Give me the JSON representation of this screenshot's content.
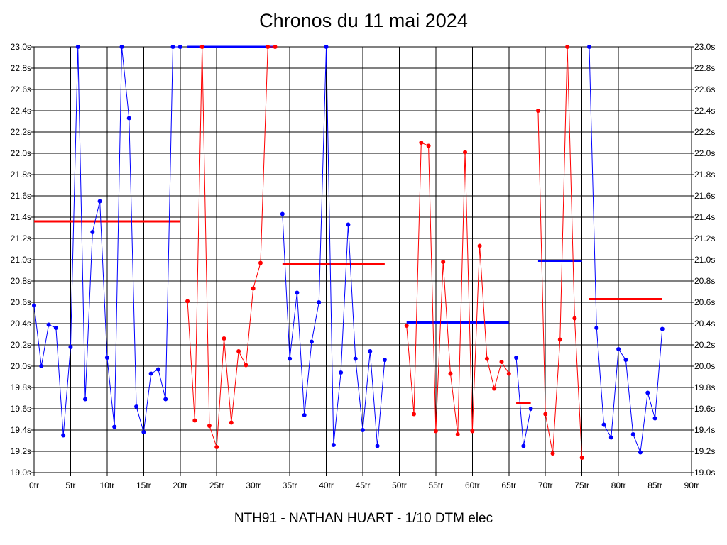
{
  "chart_data": {
    "type": "line",
    "title": "Chronos du 11 mai 2024",
    "footer": "NTH91 - NATHAN HUART - 1/10 DTM elec",
    "xlabel": "",
    "ylabel": "",
    "xlim": [
      0,
      90
    ],
    "ylim": [
      19.0,
      23.0
    ],
    "grid": true,
    "x_ticks": [
      "0tr",
      "5tr",
      "10tr",
      "15tr",
      "20tr",
      "25tr",
      "30tr",
      "35tr",
      "40tr",
      "45tr",
      "50tr",
      "55tr",
      "60tr",
      "65tr",
      "70tr",
      "75tr",
      "80tr",
      "85tr",
      "90tr"
    ],
    "y_ticks": [
      "19.0s",
      "19.2s",
      "19.4s",
      "19.6s",
      "19.8s",
      "20.0s",
      "20.2s",
      "20.4s",
      "20.6s",
      "20.8s",
      "21.0s",
      "21.2s",
      "21.4s",
      "21.6s",
      "21.8s",
      "22.0s",
      "22.2s",
      "22.4s",
      "22.6s",
      "22.8s",
      "23.0s"
    ],
    "series": [
      {
        "color": "#0000ff",
        "x": [
          0,
          1,
          2,
          3,
          4,
          5,
          6,
          7,
          8,
          9,
          10,
          11,
          12,
          13,
          14,
          15,
          16,
          17,
          18,
          19,
          20
        ],
        "values": [
          20.57,
          20.0,
          20.39,
          20.36,
          19.35,
          20.18,
          23.0,
          19.69,
          21.26,
          21.55,
          20.08,
          19.43,
          23.0,
          22.33,
          19.62,
          19.38,
          19.93,
          19.97,
          19.69,
          23.0,
          23.0
        ]
      },
      {
        "color": "#ff0000",
        "x": [
          21,
          22,
          23,
          24,
          25,
          26,
          27,
          28,
          29,
          30,
          31,
          32,
          33
        ],
        "values": [
          20.61,
          19.49,
          23.0,
          19.44,
          19.24,
          20.26,
          19.47,
          20.14,
          20.01,
          20.73,
          20.97,
          23.0,
          23.0
        ]
      },
      {
        "color": "#0000ff",
        "x": [
          34,
          35,
          36,
          37,
          38,
          39,
          40,
          41,
          42,
          43,
          44,
          45,
          46,
          47,
          48
        ],
        "values": [
          21.43,
          20.07,
          20.69,
          19.54,
          20.23,
          20.6,
          23.0,
          19.26,
          19.94,
          21.33,
          20.07,
          19.4,
          20.14,
          19.25,
          20.06
        ]
      },
      {
        "color": "#ff0000",
        "x": [
          51,
          52,
          53,
          54,
          55,
          56,
          57,
          58,
          59,
          60,
          61,
          62,
          63,
          64,
          65
        ],
        "values": [
          20.38,
          19.55,
          22.1,
          22.07,
          19.39,
          20.98,
          19.93,
          19.36,
          22.01,
          19.39,
          21.13,
          20.07,
          19.79,
          20.04,
          19.93
        ]
      },
      {
        "color": "#0000ff",
        "x": [
          66,
          67,
          68
        ],
        "values": [
          20.08,
          19.25,
          19.6
        ]
      },
      {
        "color": "#ff0000",
        "x": [
          69,
          70,
          71,
          72,
          73,
          74,
          75
        ],
        "values": [
          22.4,
          19.55,
          19.18,
          20.25,
          23.0,
          20.45,
          19.14
        ]
      },
      {
        "color": "#0000ff",
        "x": [
          76,
          77,
          78,
          79,
          80,
          81,
          82,
          83,
          84,
          85,
          86
        ],
        "values": [
          23.0,
          20.36,
          19.45,
          19.33,
          20.16,
          20.06,
          19.36,
          19.19,
          19.75,
          19.51,
          20.35
        ]
      }
    ],
    "averages": [
      {
        "color": "#ff0000",
        "x_start": 0,
        "x_end": 20,
        "value": 21.36
      },
      {
        "color": "#0000ff",
        "x_start": 21,
        "x_end": 33,
        "value": 23.0
      },
      {
        "color": "#ff0000",
        "x_start": 34,
        "x_end": 48,
        "value": 20.96
      },
      {
        "color": "#0000ff",
        "x_start": 51,
        "x_end": 65,
        "value": 20.41
      },
      {
        "color": "#ff0000",
        "x_start": 66,
        "x_end": 68,
        "value": 19.65
      },
      {
        "color": "#0000ff",
        "x_start": 69,
        "x_end": 75,
        "value": 20.99
      },
      {
        "color": "#ff0000",
        "x_start": 76,
        "x_end": 86,
        "value": 20.63
      }
    ]
  }
}
